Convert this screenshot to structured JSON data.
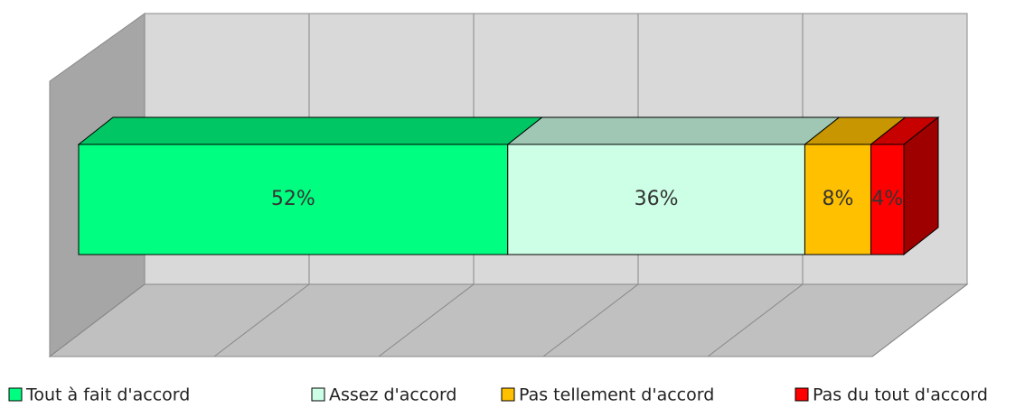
{
  "chart_data": {
    "type": "bar",
    "orientation": "horizontal",
    "stacked": true,
    "three_d": true,
    "xlim": [
      0,
      100
    ],
    "xticks": [
      0,
      20,
      40,
      60,
      80,
      100
    ],
    "grid": true,
    "legend": "bottom",
    "series": [
      {
        "name": "Tout à fait d'accord",
        "color": "#00ff80",
        "values": [
          52
        ],
        "value_labels": [
          "52%"
        ]
      },
      {
        "name": "Assez d'accord",
        "color": "#ccffe6",
        "values": [
          36
        ],
        "value_labels": [
          "36%"
        ]
      },
      {
        "name": "Pas tellement d'accord",
        "color": "#ffc000",
        "values": [
          8
        ],
        "value_labels": [
          "8%"
        ]
      },
      {
        "name": "Pas du tout d'accord",
        "color": "#ff0000",
        "values": [
          4
        ],
        "value_labels": [
          "4%"
        ]
      }
    ]
  }
}
